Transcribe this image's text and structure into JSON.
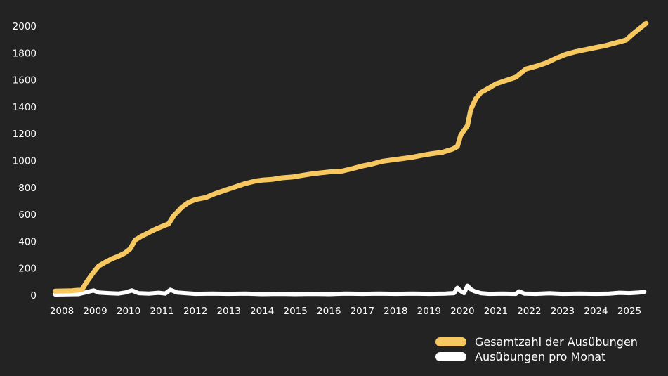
{
  "chart_data": {
    "type": "line",
    "title": "",
    "xlabel": "",
    "ylabel": "",
    "xlim": [
      2008,
      2025.5
    ],
    "ylim": [
      0,
      2000
    ],
    "x_ticks": [
      "2008",
      "2009",
      "2010",
      "2011",
      "2012",
      "2013",
      "2014",
      "2015",
      "2016",
      "2017",
      "2018",
      "2019",
      "2020",
      "2021",
      "2022",
      "2023",
      "2024",
      "2025"
    ],
    "y_ticks": [
      "0",
      "200",
      "400",
      "600",
      "800",
      "1000",
      "1200",
      "1400",
      "1600",
      "1800",
      "2000"
    ],
    "grid": false,
    "legend_position": "bottom-right",
    "series": [
      {
        "name": "Gesamtzahl der Ausübungen",
        "color": "#f6c85f",
        "points": [
          [
            2007.8,
            30
          ],
          [
            2008.3,
            33
          ],
          [
            2008.6,
            40
          ],
          [
            2008.75,
            100
          ],
          [
            2008.95,
            170
          ],
          [
            2009.1,
            215
          ],
          [
            2009.3,
            245
          ],
          [
            2009.5,
            270
          ],
          [
            2009.7,
            290
          ],
          [
            2009.9,
            315
          ],
          [
            2010.05,
            345
          ],
          [
            2010.2,
            410
          ],
          [
            2010.4,
            440
          ],
          [
            2010.6,
            465
          ],
          [
            2010.8,
            490
          ],
          [
            2011.0,
            510
          ],
          [
            2011.2,
            530
          ],
          [
            2011.35,
            590
          ],
          [
            2011.6,
            655
          ],
          [
            2011.8,
            690
          ],
          [
            2012.0,
            710
          ],
          [
            2012.3,
            725
          ],
          [
            2012.6,
            755
          ],
          [
            2012.9,
            780
          ],
          [
            2013.2,
            805
          ],
          [
            2013.5,
            830
          ],
          [
            2013.8,
            848
          ],
          [
            2014.0,
            855
          ],
          [
            2014.3,
            860
          ],
          [
            2014.6,
            872
          ],
          [
            2014.9,
            878
          ],
          [
            2015.2,
            890
          ],
          [
            2015.5,
            902
          ],
          [
            2015.8,
            910
          ],
          [
            2016.1,
            918
          ],
          [
            2016.4,
            922
          ],
          [
            2016.7,
            940
          ],
          [
            2017.0,
            960
          ],
          [
            2017.3,
            975
          ],
          [
            2017.6,
            995
          ],
          [
            2017.9,
            1005
          ],
          [
            2018.2,
            1015
          ],
          [
            2018.5,
            1025
          ],
          [
            2018.8,
            1040
          ],
          [
            2019.1,
            1052
          ],
          [
            2019.4,
            1062
          ],
          [
            2019.7,
            1085
          ],
          [
            2019.85,
            1105
          ],
          [
            2019.95,
            1190
          ],
          [
            2020.15,
            1260
          ],
          [
            2020.25,
            1380
          ],
          [
            2020.4,
            1460
          ],
          [
            2020.55,
            1505
          ],
          [
            2020.8,
            1540
          ],
          [
            2021.0,
            1570
          ],
          [
            2021.3,
            1595
          ],
          [
            2021.6,
            1620
          ],
          [
            2021.75,
            1650
          ],
          [
            2021.9,
            1680
          ],
          [
            2022.2,
            1700
          ],
          [
            2022.5,
            1725
          ],
          [
            2022.8,
            1760
          ],
          [
            2023.1,
            1790
          ],
          [
            2023.4,
            1810
          ],
          [
            2023.7,
            1825
          ],
          [
            2024.0,
            1840
          ],
          [
            2024.3,
            1855
          ],
          [
            2024.6,
            1875
          ],
          [
            2024.9,
            1895
          ],
          [
            2025.1,
            1940
          ],
          [
            2025.3,
            1980
          ],
          [
            2025.5,
            2020
          ]
        ]
      },
      {
        "name": "Ausübungen pro Monat",
        "color": "#ffffff",
        "points": [
          [
            2007.8,
            5
          ],
          [
            2008.5,
            8
          ],
          [
            2008.7,
            20
          ],
          [
            2008.95,
            35
          ],
          [
            2009.1,
            20
          ],
          [
            2009.4,
            15
          ],
          [
            2009.7,
            12
          ],
          [
            2009.9,
            20
          ],
          [
            2010.1,
            35
          ],
          [
            2010.3,
            15
          ],
          [
            2010.6,
            12
          ],
          [
            2010.9,
            18
          ],
          [
            2011.1,
            12
          ],
          [
            2011.25,
            40
          ],
          [
            2011.45,
            20
          ],
          [
            2011.7,
            15
          ],
          [
            2012.0,
            10
          ],
          [
            2012.5,
            12
          ],
          [
            2013.0,
            10
          ],
          [
            2013.5,
            12
          ],
          [
            2014.0,
            8
          ],
          [
            2014.5,
            10
          ],
          [
            2015.0,
            8
          ],
          [
            2015.5,
            10
          ],
          [
            2016.0,
            8
          ],
          [
            2016.5,
            12
          ],
          [
            2017.0,
            10
          ],
          [
            2017.5,
            12
          ],
          [
            2018.0,
            10
          ],
          [
            2018.5,
            12
          ],
          [
            2019.0,
            10
          ],
          [
            2019.5,
            12
          ],
          [
            2019.75,
            15
          ],
          [
            2019.85,
            55
          ],
          [
            2019.95,
            30
          ],
          [
            2020.05,
            15
          ],
          [
            2020.15,
            70
          ],
          [
            2020.25,
            45
          ],
          [
            2020.35,
            30
          ],
          [
            2020.55,
            15
          ],
          [
            2020.8,
            10
          ],
          [
            2021.2,
            12
          ],
          [
            2021.6,
            10
          ],
          [
            2021.7,
            28
          ],
          [
            2021.85,
            12
          ],
          [
            2022.2,
            10
          ],
          [
            2022.6,
            14
          ],
          [
            2023.0,
            10
          ],
          [
            2023.5,
            12
          ],
          [
            2024.0,
            10
          ],
          [
            2024.4,
            12
          ],
          [
            2024.7,
            18
          ],
          [
            2025.0,
            15
          ],
          [
            2025.3,
            20
          ],
          [
            2025.45,
            25
          ]
        ]
      }
    ]
  }
}
